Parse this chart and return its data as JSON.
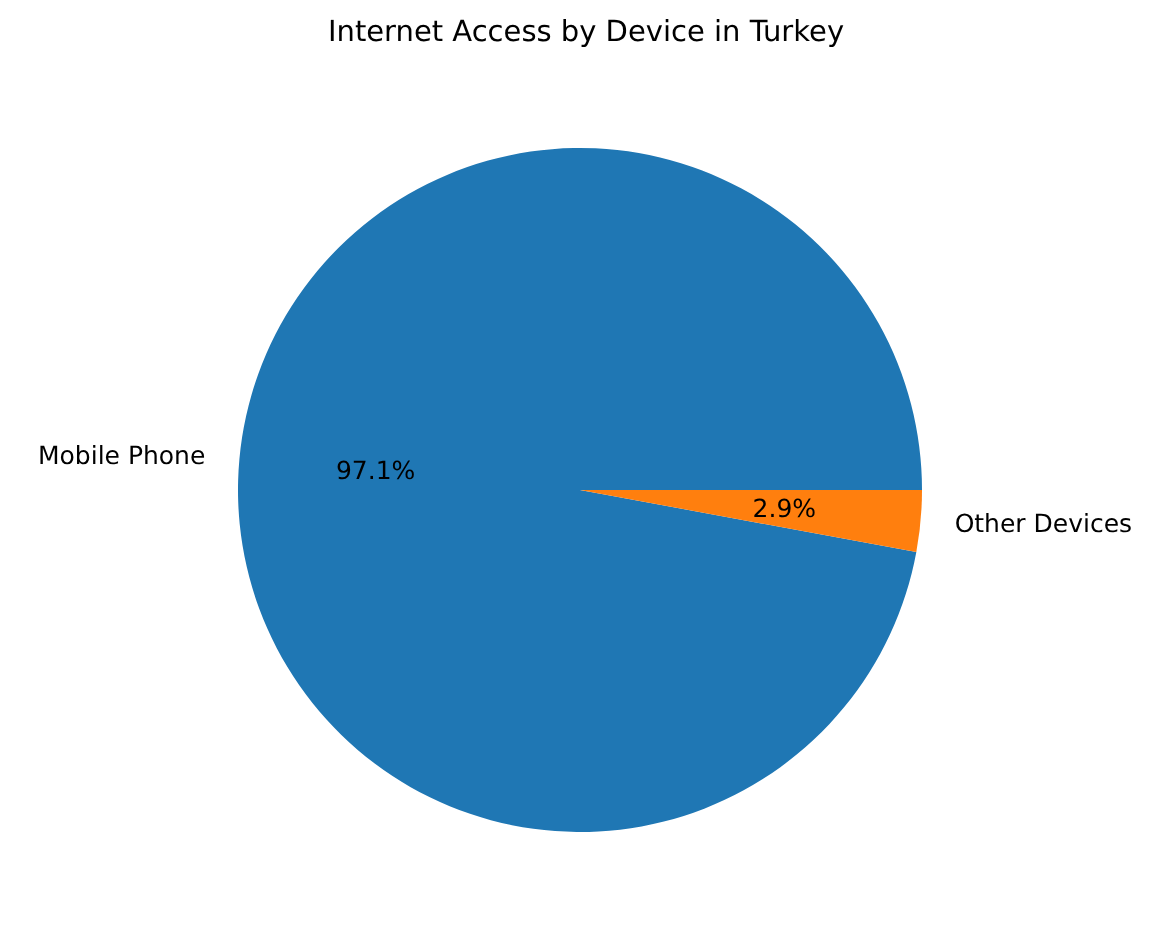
{
  "chart_data": {
    "type": "pie",
    "title": "Internet Access by Device in Turkey",
    "categories": [
      "Mobile Phone",
      "Other Devices"
    ],
    "values": [
      97.1,
      2.9
    ],
    "colors": [
      "#1f77b4",
      "#ff7f0e"
    ],
    "value_labels": [
      "97.1%",
      "2.9%"
    ]
  }
}
